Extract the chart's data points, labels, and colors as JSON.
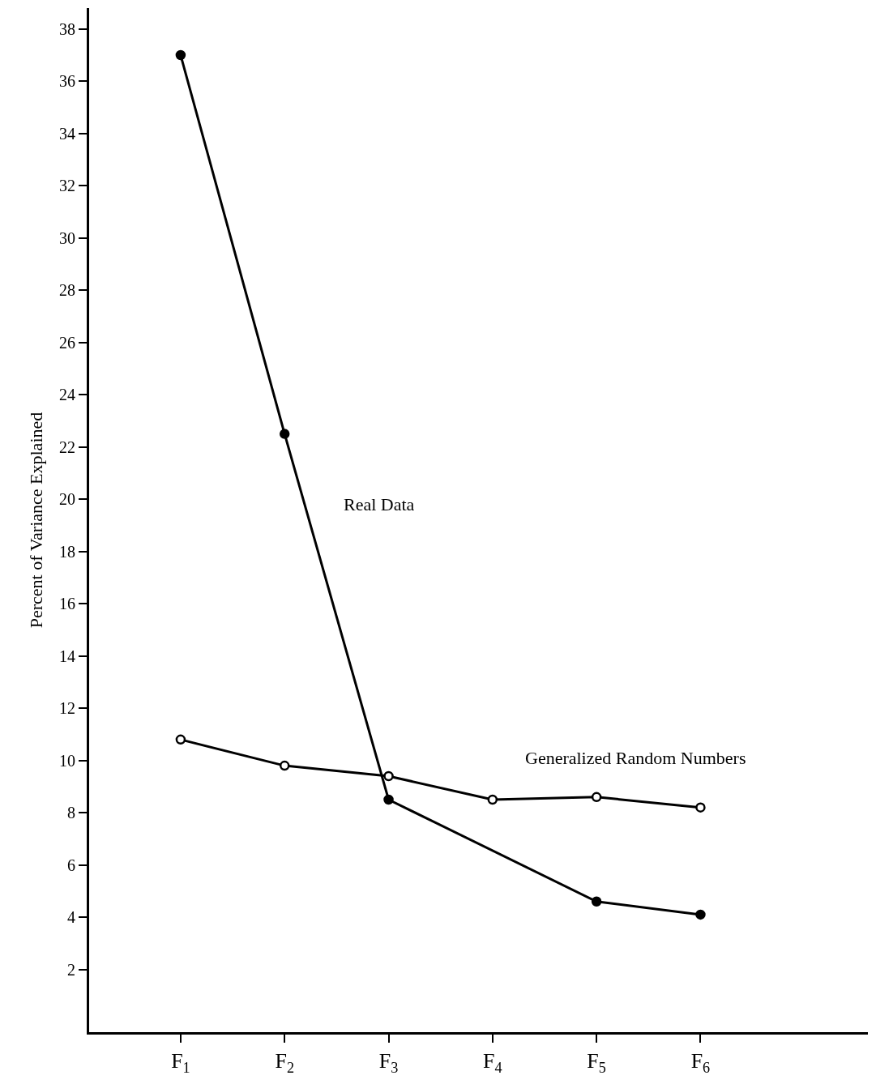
{
  "chart_data": {
    "type": "line",
    "ylabel": "Percent of Variance Explained",
    "categories": [
      "F$_{1}$",
      "F$_{2}$",
      "F$_{3}$",
      "F$_{4}$",
      "F$_{5}$",
      "F$_{6}$"
    ],
    "series": [
      {
        "name": "Real Data",
        "color": "#000000",
        "values": [
          37,
          22.5,
          8.5,
          null,
          4.6,
          4.1
        ]
      },
      {
        "name": "Generalized Random Numbers",
        "color": "#000000",
        "values": [
          10.8,
          9.8,
          9.4,
          8.5,
          8.6,
          8.2
        ]
      }
    ],
    "ylim": [
      -0.4,
      38.8
    ],
    "yticks": [
      2,
      4,
      6,
      8,
      10,
      12,
      14,
      16,
      18,
      20,
      22,
      24,
      26,
      28,
      30,
      32,
      34,
      36,
      38
    ],
    "legend": false,
    "marker": "circle",
    "line_style": "solid"
  }
}
